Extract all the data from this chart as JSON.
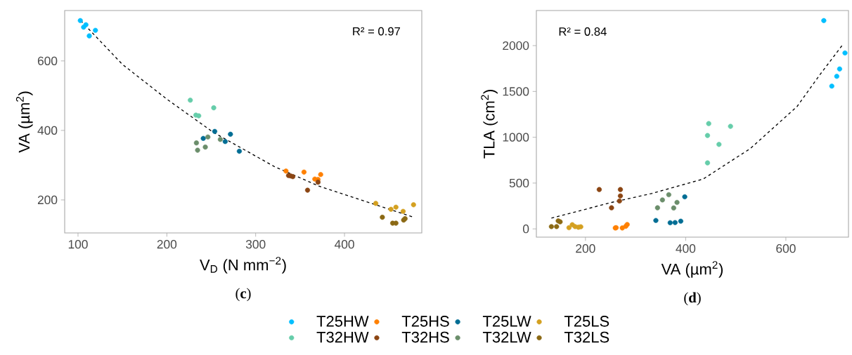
{
  "chart_data": [
    {
      "type": "scatter",
      "title": "(**c**)",
      "xlabel": "V$_{D}$ (N mm$^{−2}$)",
      "ylabel": "VA (µm$^{2}$)",
      "annotations": [
        "R² = 0.97"
      ],
      "xlim": [
        85,
        487
      ],
      "ylim": [
        105,
        745
      ],
      "xticks": [
        100,
        200,
        300,
        400
      ],
      "yticks": [
        200,
        400,
        600
      ],
      "grid": false,
      "legend": "bottom",
      "marker": "circle",
      "series": [
        {
          "name": "T25HW",
          "color": "#00bfff",
          "x": [
            102.6,
            106.3,
            108.9,
            112.7,
            119.6
          ],
          "values": [
            716,
            697,
            704,
            672,
            688
          ]
        },
        {
          "name": "T25HS",
          "color": "#ff8000",
          "x": [
            334.1,
            354.4,
            366.6,
            370.2,
            373.2
          ],
          "values": [
            283,
            280,
            260,
            259,
            273
          ]
        },
        {
          "name": "T25LW",
          "color": "#006d94",
          "x": [
            241.0,
            253.9,
            265.7,
            271.6,
            281.6
          ],
          "values": [
            377,
            397,
            368,
            389,
            340
          ]
        },
        {
          "name": "T25LS",
          "color": "#d4a020",
          "x": [
            435.2,
            452.3,
            457.9,
            466.0,
            477.7
          ],
          "values": [
            190,
            173,
            179,
            167,
            186
          ]
        },
        {
          "name": "T32HW",
          "color": "#66cdaa",
          "x": [
            226.4,
            232.7,
            235.9,
            252.8
          ],
          "values": [
            487,
            444,
            442,
            465
          ]
        },
        {
          "name": "T32HS",
          "color": "#8b4513",
          "x": [
            337.0,
            339.4,
            341.8,
            358.4,
            370.2
          ],
          "values": [
            270,
            269,
            267,
            228,
            251
          ]
        },
        {
          "name": "T32LW",
          "color": "#6b8e6b",
          "x": [
            233.3,
            234.6,
            243.3,
            246.2,
            260.2
          ],
          "values": [
            364,
            343,
            352,
            381,
            374
          ]
        },
        {
          "name": "T32LS",
          "color": "#8b6914",
          "x": [
            442.6,
            454.2,
            457.9,
            466.6,
            468.2
          ],
          "values": [
            150,
            133,
            133,
            142,
            146
          ]
        },
        {
          "type": "line",
          "color": "#000000",
          "line_style": "dashed",
          "marker": "none",
          "x": [
            103,
            150,
            200,
            252,
            321,
            371,
            434,
            477
          ],
          "values": [
            716,
            590,
            490,
            395,
            296,
            240,
            187,
            151
          ]
        }
      ]
    },
    {
      "type": "scatter",
      "title": "(**d**)",
      "xlabel": "VA (µm$^{2}$)",
      "ylabel": "TLA (cm$^{2}$)",
      "annotations": [
        "R² = 0.84"
      ],
      "xlim": [
        102,
        725
      ],
      "ylim": [
        -90,
        2383
      ],
      "xticks": [
        200,
        400,
        600
      ],
      "yticks": [
        0,
        500,
        1000,
        1500,
        2000
      ],
      "grid": false,
      "marker": "circle",
      "series": [
        {
          "color": "#00bfff",
          "x": [
            675.7,
            691.7,
            701.6,
            707.3,
            718.0
          ],
          "values": [
            2273,
            1558,
            1665,
            1745,
            1920
          ]
        },
        {
          "color": "#ff8000",
          "x": [
            259.5,
            261.3,
            273.5,
            280.5,
            283.3
          ],
          "values": [
            10,
            13,
            10,
            28,
            48
          ]
        },
        {
          "color": "#006d94",
          "x": [
            340.5,
            369.1,
            378.9,
            390.2,
            398.2
          ],
          "values": [
            92,
            67,
            69,
            84,
            350
          ]
        },
        {
          "color": "#d4a020",
          "x": [
            167.1,
            173.7,
            179.3,
            185.9,
            190.6
          ],
          "values": [
            13,
            46,
            25,
            18,
            23
          ]
        },
        {
          "color": "#66cdaa",
          "x": [
            443.6,
            443.6,
            446.0,
            466.5,
            489.5
          ],
          "values": [
            720,
            1019,
            1149,
            922,
            1119
          ]
        },
        {
          "color": "#8b4513",
          "x": [
            227.5,
            252.0,
            267.9,
            269.7,
            269.7
          ],
          "values": [
            429,
            230,
            304,
            360,
            429
          ]
        },
        {
          "color": "#6b8e6b",
          "x": [
            343.8,
            353.6,
            366.3,
            376.1,
            382.7
          ],
          "values": [
            230,
            316,
            373,
            228,
            289
          ]
        },
        {
          "color": "#8b6914",
          "x": [
            132.0,
            142.4,
            145.6,
            149.4
          ],
          "values": [
            25,
            25,
            87,
            77
          ]
        },
        {
          "type": "line",
          "color": "#000000",
          "line_style": "dashed",
          "marker": "none",
          "x": [
            132,
            252.4,
            332,
            435,
            528.9,
            622.5,
            669.4,
            713.8
          ],
          "values": [
            117,
            289,
            386,
            544,
            876,
            1336,
            1693,
            2013
          ]
        }
      ]
    }
  ]
}
